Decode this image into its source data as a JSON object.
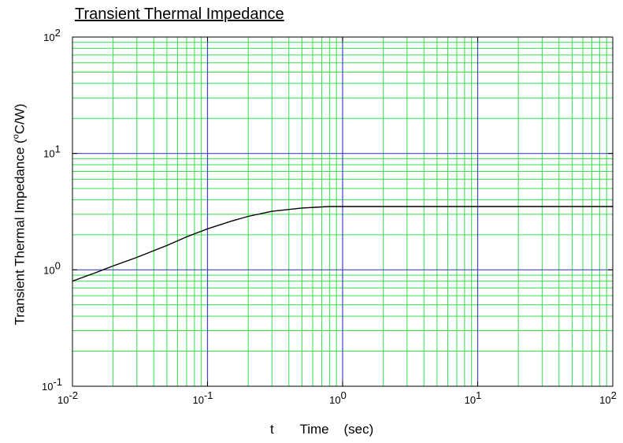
{
  "chart_data": {
    "type": "line",
    "title": "Transient Thermal Impedance",
    "xlabel": "t       Time    (sec)",
    "ylabel": {
      "prefix": "Transient Thermal Impedance    (",
      "superscript": "o",
      "suffix": "C/W)"
    },
    "x_scale": "log",
    "y_scale": "log",
    "xlim": [
      0.01,
      100
    ],
    "ylim": [
      0.1,
      100
    ],
    "x_ticks": [
      {
        "base": "10",
        "exp": "-2",
        "value": 0.01
      },
      {
        "base": "10",
        "exp": "-1",
        "value": 0.1
      },
      {
        "base": "10",
        "exp": "0",
        "value": 1
      },
      {
        "base": "10",
        "exp": "1",
        "value": 10
      },
      {
        "base": "10",
        "exp": "2",
        "value": 100
      }
    ],
    "y_ticks": [
      {
        "base": "10",
        "exp": "-1",
        "value": 0.1
      },
      {
        "base": "10",
        "exp": "0",
        "value": 1
      },
      {
        "base": "10",
        "exp": "1",
        "value": 10
      },
      {
        "base": "10",
        "exp": "2",
        "value": 100
      }
    ],
    "grid": true,
    "colors": {
      "major_grid": "#4040c8",
      "minor_grid": "#33e04a",
      "curve": "#000000",
      "axes": "#000000"
    },
    "series": [
      {
        "x": [
          0.01,
          0.015,
          0.02,
          0.03,
          0.05,
          0.07,
          0.1,
          0.15,
          0.2,
          0.3,
          0.5,
          0.7,
          0.8,
          1,
          2,
          5,
          10,
          20,
          50,
          100
        ],
        "y": [
          0.8,
          0.95,
          1.08,
          1.28,
          1.62,
          1.92,
          2.25,
          2.62,
          2.88,
          3.18,
          3.4,
          3.47,
          3.5,
          3.5,
          3.5,
          3.5,
          3.5,
          3.5,
          3.5,
          3.5
        ]
      }
    ]
  }
}
